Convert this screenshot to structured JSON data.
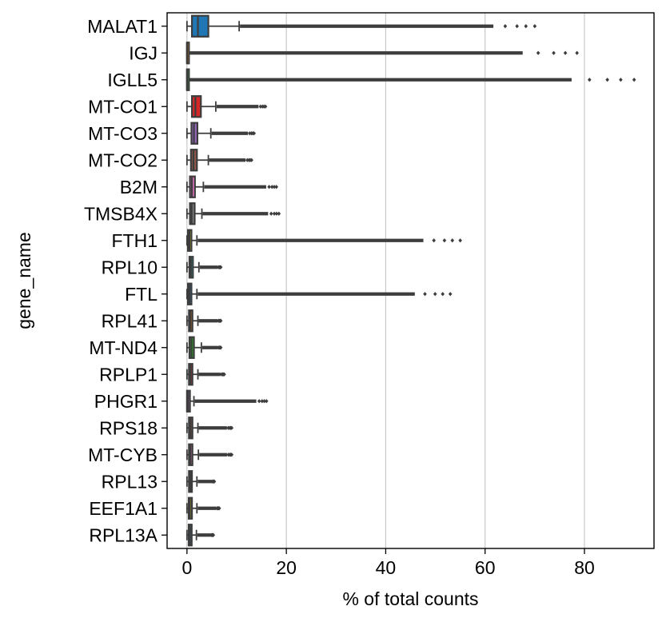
{
  "chart_data": {
    "type": "box",
    "orientation": "horizontal",
    "xlabel": "% of total counts",
    "ylabel": "gene_name",
    "xlim": [
      -4,
      94
    ],
    "x_ticks": [
      0,
      20,
      40,
      60,
      80
    ],
    "x_tick_labels": [
      "0",
      "20",
      "40",
      "60",
      "80"
    ],
    "grid": "vertical",
    "legend": "none",
    "box_edge_color": "#3d3d3d",
    "categories": [
      "MALAT1",
      "IGJ",
      "IGLL5",
      "MT-CO1",
      "MT-CO3",
      "MT-CO2",
      "B2M",
      "TMSB4X",
      "FTH1",
      "RPL10",
      "FTL",
      "RPL41",
      "MT-ND4",
      "RPLP1",
      "PHGR1",
      "RPS18",
      "MT-CYB",
      "RPL13",
      "EEF1A1",
      "RPL13A"
    ],
    "series": [
      {
        "gene": "MALAT1",
        "color": "#1f77b4",
        "q1": 1.0,
        "median": 2.2,
        "q3": 4.3,
        "whisker_low": 0.0,
        "whisker_high": 10.5,
        "outlier_max": 70.0
      },
      {
        "gene": "IGJ",
        "color": "#ff7f0e",
        "q1": 0.0,
        "median": 0.0,
        "q3": 0.15,
        "whisker_low": 0.0,
        "whisker_high": 0.4,
        "outlier_max": 78.5
      },
      {
        "gene": "IGLL5",
        "color": "#2ca02c",
        "q1": 0.0,
        "median": 0.0,
        "q3": 0.05,
        "whisker_low": 0.0,
        "whisker_high": 0.12,
        "outlier_max": 90.0
      },
      {
        "gene": "MT-CO1",
        "color": "#d62728",
        "q1": 1.0,
        "median": 1.7,
        "q3": 2.8,
        "whisker_low": 0.0,
        "whisker_high": 5.8,
        "outlier_max": 15.8
      },
      {
        "gene": "MT-CO3",
        "color": "#9467bd",
        "q1": 0.9,
        "median": 1.4,
        "q3": 2.1,
        "whisker_low": 0.0,
        "whisker_high": 4.8,
        "outlier_max": 13.5
      },
      {
        "gene": "MT-CO2",
        "color": "#8c564b",
        "q1": 0.8,
        "median": 1.3,
        "q3": 2.0,
        "whisker_low": 0.0,
        "whisker_high": 4.3,
        "outlier_max": 13.0
      },
      {
        "gene": "B2M",
        "color": "#e377c2",
        "q1": 0.6,
        "median": 1.0,
        "q3": 1.6,
        "whisker_low": 0.0,
        "whisker_high": 3.3,
        "outlier_max": 18.0
      },
      {
        "gene": "TMSB4X",
        "color": "#7f7f7f",
        "q1": 0.6,
        "median": 0.95,
        "q3": 1.55,
        "whisker_low": 0.0,
        "whisker_high": 3.0,
        "outlier_max": 18.5
      },
      {
        "gene": "FTH1",
        "color": "#bcbd22",
        "q1": 0.2,
        "median": 0.5,
        "q3": 0.9,
        "whisker_low": 0.0,
        "whisker_high": 2.0,
        "outlier_max": 55.0
      },
      {
        "gene": "RPL10",
        "color": "#17becf",
        "q1": 0.5,
        "median": 0.8,
        "q3": 1.2,
        "whisker_low": 0.0,
        "whisker_high": 2.4,
        "outlier_max": 6.8
      },
      {
        "gene": "FTL",
        "color": "#1f77b4",
        "q1": 0.2,
        "median": 0.5,
        "q3": 0.9,
        "whisker_low": 0.0,
        "whisker_high": 2.0,
        "outlier_max": 53.0
      },
      {
        "gene": "RPL41",
        "color": "#ff7f0e",
        "q1": 0.4,
        "median": 0.7,
        "q3": 1.1,
        "whisker_low": 0.0,
        "whisker_high": 2.2,
        "outlier_max": 6.8
      },
      {
        "gene": "MT-ND4",
        "color": "#2ca02c",
        "q1": 0.5,
        "median": 0.9,
        "q3": 1.4,
        "whisker_low": 0.0,
        "whisker_high": 2.9,
        "outlier_max": 6.8
      },
      {
        "gene": "RPLP1",
        "color": "#d62728",
        "q1": 0.4,
        "median": 0.7,
        "q3": 1.1,
        "whisker_low": 0.0,
        "whisker_high": 2.2,
        "outlier_max": 7.5
      },
      {
        "gene": "PHGR1",
        "color": "#9467bd",
        "q1": 0.0,
        "median": 0.2,
        "q3": 0.6,
        "whisker_low": 0.0,
        "whisker_high": 1.4,
        "outlier_max": 16.0
      },
      {
        "gene": "RPS18",
        "color": "#8c564b",
        "q1": 0.4,
        "median": 0.7,
        "q3": 1.1,
        "whisker_low": 0.0,
        "whisker_high": 2.2,
        "outlier_max": 9.0
      },
      {
        "gene": "MT-CYB",
        "color": "#e377c2",
        "q1": 0.4,
        "median": 0.7,
        "q3": 1.1,
        "whisker_low": 0.0,
        "whisker_high": 2.3,
        "outlier_max": 9.0
      },
      {
        "gene": "RPL13",
        "color": "#7f7f7f",
        "q1": 0.4,
        "median": 0.65,
        "q3": 1.0,
        "whisker_low": 0.0,
        "whisker_high": 2.0,
        "outlier_max": 5.5
      },
      {
        "gene": "EEF1A1",
        "color": "#bcbd22",
        "q1": 0.35,
        "median": 0.6,
        "q3": 1.0,
        "whisker_low": 0.0,
        "whisker_high": 2.0,
        "outlier_max": 6.5
      },
      {
        "gene": "RPL13A",
        "color": "#17becf",
        "q1": 0.35,
        "median": 0.6,
        "q3": 0.95,
        "whisker_low": 0.0,
        "whisker_high": 1.9,
        "outlier_max": 5.3
      }
    ]
  }
}
